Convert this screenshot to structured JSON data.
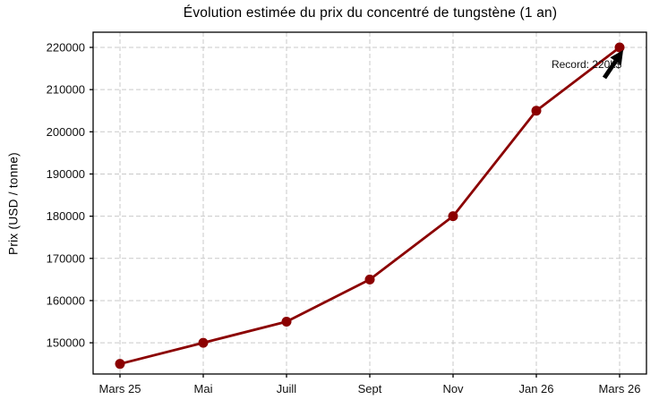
{
  "chart_data": {
    "type": "line",
    "title": "Évolution estimée du prix du concentré de tungstène (1 an)",
    "ylabel": "Prix (USD / tonne)",
    "xlabel": "",
    "categories": [
      "Mars 25",
      "Mai",
      "Juill",
      "Sept",
      "Nov",
      "Jan 26",
      "Mars 26"
    ],
    "series": [
      {
        "color": "#8b0000",
        "marker": "circle",
        "values": [
          145000,
          150000,
          155000,
          165000,
          180000,
          205000,
          220000
        ]
      }
    ],
    "yticks": [
      150000,
      160000,
      170000,
      180000,
      190000,
      200000,
      210000,
      220000
    ],
    "ylim": [
      142600,
      223600
    ],
    "grid": true,
    "grid_color": "#c9c9c9",
    "spine_color": "#000000",
    "tick_label_color": "#111111",
    "legend": "none",
    "annotation": {
      "text": "Record: 220k$",
      "target_index": 6,
      "text_color": "#000000",
      "arrow_color": "#000000"
    }
  }
}
